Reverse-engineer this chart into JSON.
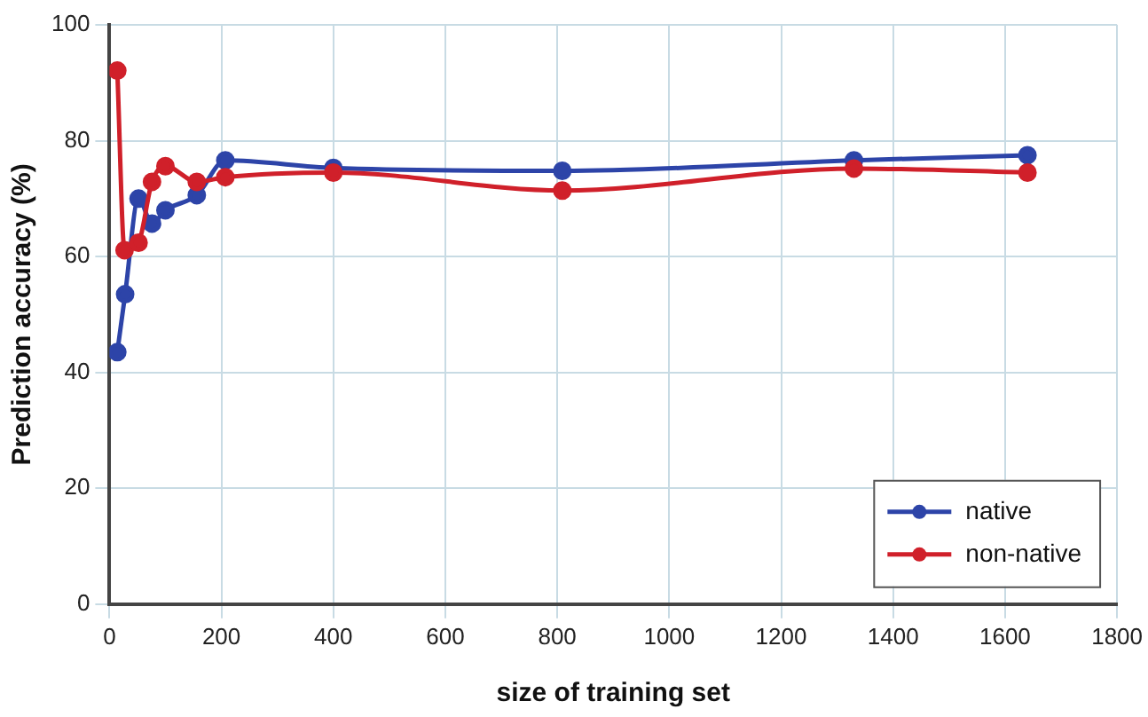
{
  "chart_data": {
    "type": "line",
    "xlabel": "size of training set",
    "ylabel": "Prediction accuracy (%)",
    "xlim": [
      0,
      1800
    ],
    "xticks": [
      0,
      200,
      400,
      600,
      800,
      1000,
      1200,
      1400,
      1600,
      1800
    ],
    "ylim": [
      0,
      100
    ],
    "yticks": [
      0,
      20,
      40,
      60,
      80,
      100
    ],
    "grid": true,
    "legend": "bottom right",
    "marker": "circle",
    "line_style": "solid",
    "series": [
      {
        "name": "native",
        "color": "#2d44a8",
        "x": [
          14,
          28,
          52,
          76,
          100,
          156,
          207,
          400,
          809,
          1330,
          1640
        ],
        "values": [
          43.5,
          53.5,
          70,
          65.7,
          68,
          70.6,
          76.6,
          75.3,
          74.8,
          76.6,
          77.5
        ]
      },
      {
        "name": "non-native",
        "color": "#d0202a",
        "x": [
          14,
          27,
          52,
          76,
          100,
          156,
          207,
          400,
          809,
          1330,
          1640
        ],
        "values": [
          92.1,
          61.1,
          62.4,
          72.9,
          75.6,
          72.9,
          73.7,
          74.5,
          71.4,
          75.2,
          74.5
        ]
      }
    ]
  }
}
